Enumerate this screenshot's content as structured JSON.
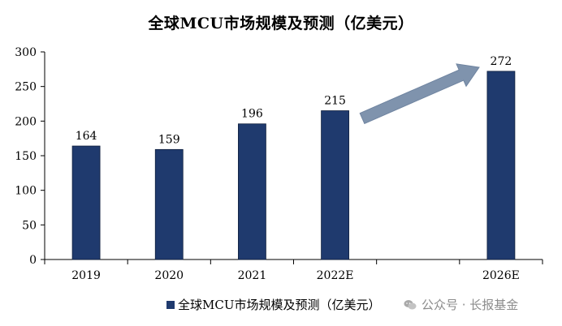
{
  "chart_data": {
    "type": "bar",
    "title": "全球MCU市场规模及预测（亿美元）",
    "categories": [
      "2019",
      "2020",
      "2021",
      "2022E",
      "",
      "2026E"
    ],
    "series": [
      {
        "name": "全球MCU市场规模及预测（亿美元）",
        "values": [
          164,
          159,
          196,
          215,
          null,
          272
        ],
        "labels": [
          "164",
          "159",
          "196",
          "215",
          "",
          "272"
        ]
      }
    ],
    "yticks": [
      "0",
      "50",
      "100",
      "150",
      "200",
      "250",
      "300"
    ],
    "ylim": [
      0,
      300
    ],
    "xlabel": "",
    "ylabel": "",
    "grid": false,
    "legend": "bottom",
    "annotation": "arrow from 2022E to 2026E",
    "colors": {
      "bar": "#1f3a6e",
      "arrow": "#7f93ad",
      "axis": "#000000"
    }
  },
  "watermark": {
    "text": "公众号 · 长报基金",
    "icon": "wechat-icon"
  }
}
